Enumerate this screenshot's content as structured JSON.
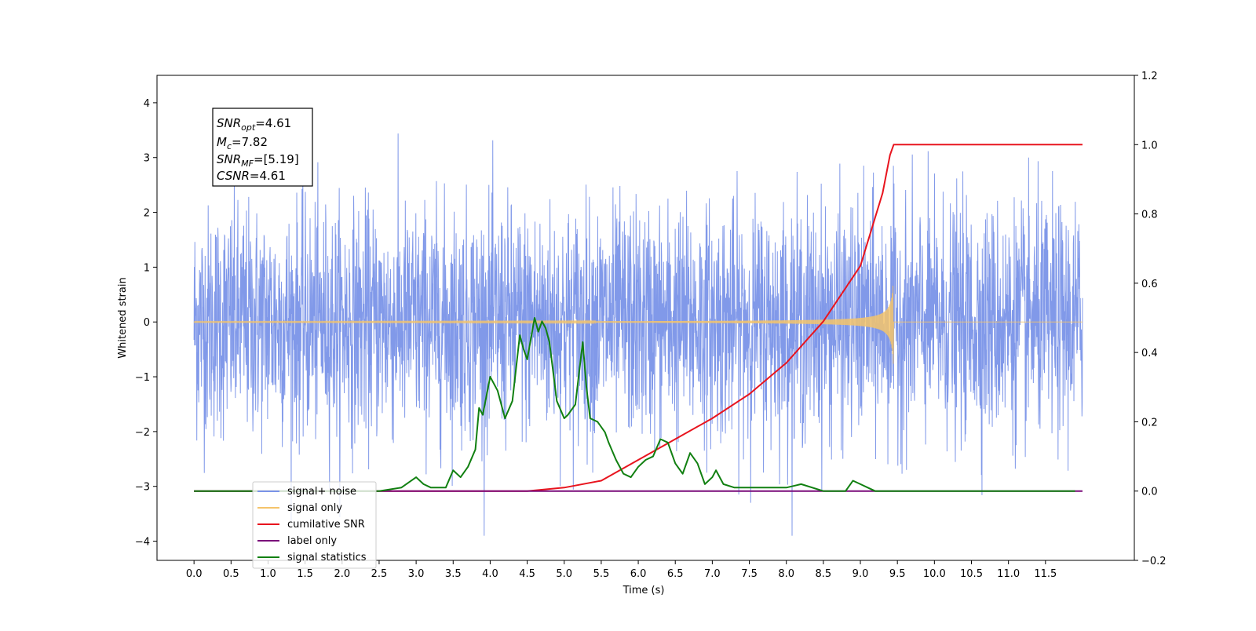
{
  "chart_data": {
    "type": "line",
    "xlabel": "Time (s)",
    "ylabel": "Whitened strain",
    "xlim": [
      -0.5,
      12.7
    ],
    "ylim": [
      -4.35,
      4.5
    ],
    "y2lim": [
      -0.2,
      1.2
    ],
    "xticks": [
      "0.0",
      "0.5",
      "1.0",
      "1.5",
      "2.0",
      "2.5",
      "3.0",
      "3.5",
      "4.0",
      "4.5",
      "5.0",
      "5.5",
      "6.0",
      "6.5",
      "7.0",
      "7.5",
      "8.0",
      "8.5",
      "9.0",
      "9.5",
      "10.0",
      "10.5",
      "11.0",
      "11.5"
    ],
    "yticks": [
      "4",
      "3",
      "2",
      "1",
      "0",
      "−1",
      "−2",
      "−3",
      "−4"
    ],
    "y2ticks": [
      "1.2",
      "1.0",
      "0.8",
      "0.6",
      "0.4",
      "0.2",
      "0.0",
      "−0.2"
    ],
    "grid": false,
    "legend_position": "lower-left",
    "annotation": {
      "snr_opt": "4.61",
      "mc": "7.82",
      "snr_mf": "[5.19]",
      "csnr": "4.61"
    },
    "series": [
      {
        "name": "signal+ noise",
        "axis": "left",
        "color": "#7a94e8",
        "kind": "noise",
        "t_range": [
          0.0,
          12.0
        ],
        "amplitude_range": [
          -3.9,
          4.1
        ],
        "typical_band": [
          -2.5,
          2.5
        ]
      },
      {
        "name": "signal only",
        "axis": "left",
        "color": "#f5c46b",
        "kind": "chirp",
        "t_range": [
          0.0,
          12.0
        ],
        "merger_time": 9.45,
        "peak_amplitude": 0.78
      },
      {
        "name": "cumilative SNR",
        "axis": "right",
        "color": "#e8141e",
        "x": [
          0.0,
          4.0,
          4.5,
          5.0,
          5.5,
          6.0,
          6.5,
          7.0,
          7.5,
          8.0,
          8.5,
          9.0,
          9.3,
          9.4,
          9.45,
          12.0
        ],
        "values": [
          0.0,
          0.0,
          0.0,
          0.01,
          0.03,
          0.09,
          0.15,
          0.21,
          0.28,
          0.37,
          0.49,
          0.65,
          0.86,
          0.97,
          1.0,
          1.0
        ]
      },
      {
        "name": "label only",
        "axis": "right",
        "color": "#7a0c7a",
        "x": [
          0.0,
          12.0
        ],
        "values": [
          0.0,
          0.0
        ]
      },
      {
        "name": "signal statistics",
        "axis": "right",
        "color": "#118011",
        "x": [
          0.0,
          2.5,
          2.8,
          3.0,
          3.1,
          3.2,
          3.4,
          3.5,
          3.6,
          3.7,
          3.8,
          3.85,
          3.9,
          4.0,
          4.1,
          4.2,
          4.3,
          4.4,
          4.45,
          4.5,
          4.6,
          4.65,
          4.7,
          4.75,
          4.8,
          4.9,
          5.0,
          5.05,
          5.15,
          5.25,
          5.3,
          5.35,
          5.45,
          5.55,
          5.6,
          5.7,
          5.8,
          5.9,
          6.0,
          6.1,
          6.2,
          6.3,
          6.4,
          6.5,
          6.6,
          6.7,
          6.8,
          6.9,
          7.0,
          7.05,
          7.15,
          7.3,
          7.5,
          7.8,
          8.0,
          8.2,
          8.5,
          8.8,
          8.9,
          9.0,
          9.1,
          9.2,
          9.5,
          11.9
        ],
        "values": [
          0.0,
          0.0,
          0.01,
          0.04,
          0.02,
          0.01,
          0.01,
          0.06,
          0.04,
          0.07,
          0.12,
          0.24,
          0.22,
          0.33,
          0.29,
          0.21,
          0.26,
          0.45,
          0.41,
          0.38,
          0.5,
          0.46,
          0.49,
          0.47,
          0.43,
          0.26,
          0.21,
          0.22,
          0.25,
          0.43,
          0.3,
          0.21,
          0.2,
          0.17,
          0.14,
          0.09,
          0.05,
          0.04,
          0.07,
          0.09,
          0.1,
          0.15,
          0.14,
          0.08,
          0.05,
          0.11,
          0.08,
          0.02,
          0.04,
          0.06,
          0.02,
          0.01,
          0.01,
          0.01,
          0.01,
          0.02,
          0.0,
          0.0,
          0.03,
          0.02,
          0.01,
          0.0,
          0.0,
          0.0
        ]
      }
    ]
  }
}
